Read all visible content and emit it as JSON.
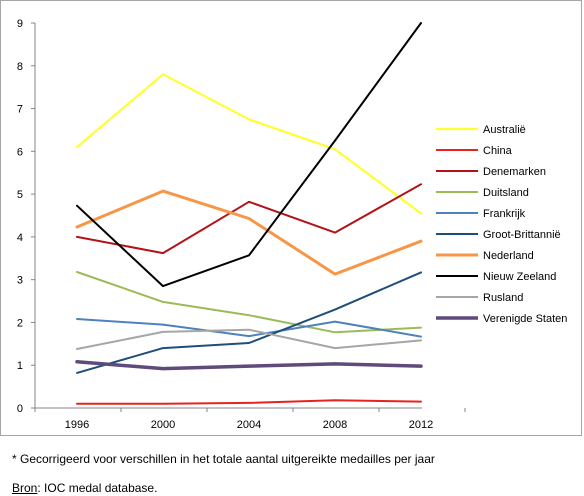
{
  "chart_data": {
    "type": "line",
    "x": [
      "1996",
      "2000",
      "2004",
      "2008",
      "2012"
    ],
    "ylim": [
      0,
      9
    ],
    "yticks": [
      "0",
      "1",
      "2",
      "3",
      "4",
      "5",
      "6",
      "7",
      "8",
      "9"
    ],
    "grid": false,
    "legend_position": "right",
    "series": [
      {
        "name": "Australië",
        "color": "#ffff33",
        "width": 2.2,
        "values": [
          6.1,
          7.8,
          6.75,
          6.05,
          4.55
        ]
      },
      {
        "name": "China",
        "color": "#e8231f",
        "width": 2.0,
        "values": [
          0.1,
          0.1,
          0.12,
          0.18,
          0.15
        ]
      },
      {
        "name": "Denemarken",
        "color": "#b31317",
        "width": 2.0,
        "values": [
          4.0,
          3.62,
          4.82,
          4.1,
          5.23
        ]
      },
      {
        "name": "Duitsland",
        "color": "#9bbb59",
        "width": 2.0,
        "values": [
          3.18,
          2.48,
          2.17,
          1.77,
          1.88
        ]
      },
      {
        "name": "Frankrijk",
        "color": "#4f81bd",
        "width": 2.0,
        "values": [
          2.08,
          1.95,
          1.68,
          2.02,
          1.67
        ]
      },
      {
        "name": "Groot-Brittannië",
        "color": "#1f4e79",
        "width": 2.0,
        "values": [
          0.82,
          1.4,
          1.52,
          2.3,
          3.17
        ]
      },
      {
        "name": "Nederland",
        "color": "#f79646",
        "width": 3.0,
        "values": [
          4.23,
          5.07,
          4.43,
          3.13,
          3.9
        ]
      },
      {
        "name": "Nieuw Zeeland",
        "color": "#000000",
        "width": 2.0,
        "values": [
          4.73,
          2.85,
          3.57,
          6.25,
          9.0
        ]
      },
      {
        "name": "Rusland",
        "color": "#a6a6a6",
        "width": 2.0,
        "values": [
          1.38,
          1.78,
          1.83,
          1.4,
          1.58
        ]
      },
      {
        "name": "Verenigde Staten",
        "color": "#604a7b",
        "width": 3.5,
        "values": [
          1.08,
          0.92,
          0.98,
          1.03,
          0.98
        ]
      }
    ]
  },
  "notes": {
    "footnote": "* Gecorrigeerd voor verschillen in het totale aantal uitgereikte medailles per jaar",
    "source_label": "Bron",
    "source_text": ": IOC medal database."
  }
}
